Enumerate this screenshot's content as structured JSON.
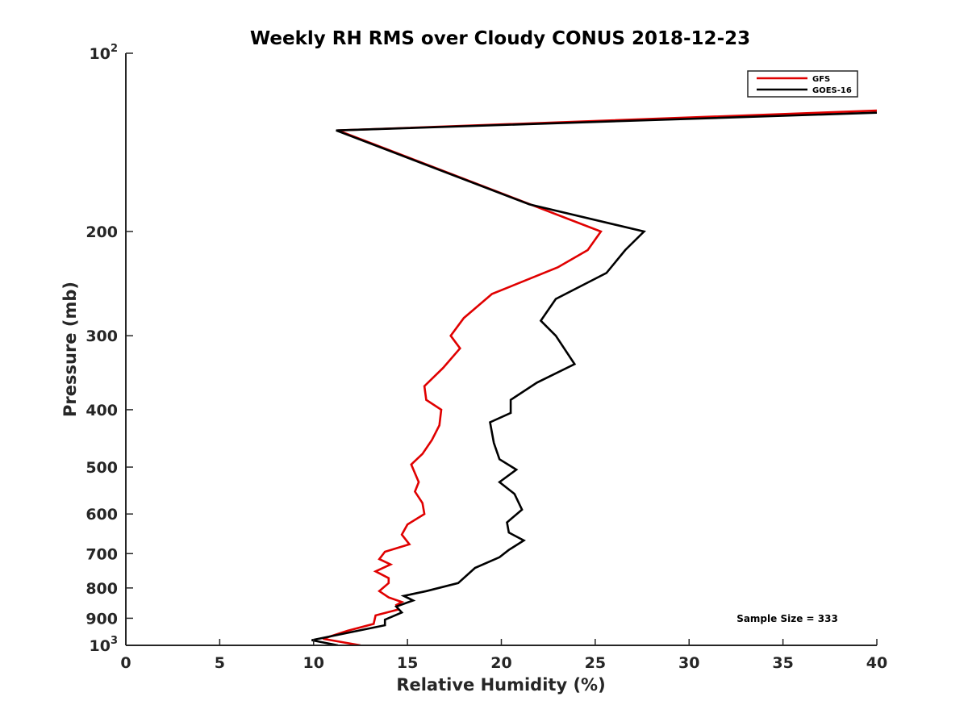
{
  "chart_data": {
    "type": "line",
    "title": "Weekly RH RMS over Cloudy CONUS 2018-12-23",
    "xlabel": "Relative Humidity (%)",
    "ylabel": "Pressure (mb)",
    "xlim": [
      0,
      40
    ],
    "ylim": [
      100,
      1000
    ],
    "y_scale": "log",
    "y_reversed": true,
    "grid": false,
    "legend_position": "top-right",
    "x_ticks": [
      "0",
      "5",
      "10",
      "15",
      "20",
      "25",
      "30",
      "35",
      "40"
    ],
    "y_ticks": [
      {
        "value": 100,
        "base": "10",
        "exp": "2"
      },
      {
        "value": 200,
        "label": "200"
      },
      {
        "value": 300,
        "label": "300"
      },
      {
        "value": 400,
        "label": "400"
      },
      {
        "value": 500,
        "label": "500"
      },
      {
        "value": 600,
        "label": "600"
      },
      {
        "value": 700,
        "label": "700"
      },
      {
        "value": 800,
        "label": "800"
      },
      {
        "value": 900,
        "label": "900"
      },
      {
        "value": 1000,
        "base": "10",
        "exp": "3"
      }
    ],
    "annotation": "Sample Size = 333",
    "series": [
      {
        "name": "GFS",
        "color": "#e00000",
        "points": [
          {
            "x": 40.0,
            "y": 125
          },
          {
            "x": 11.3,
            "y": 135
          },
          {
            "x": 25.3,
            "y": 200
          },
          {
            "x": 24.6,
            "y": 215
          },
          {
            "x": 23.0,
            "y": 230
          },
          {
            "x": 19.5,
            "y": 255
          },
          {
            "x": 18.0,
            "y": 280
          },
          {
            "x": 17.3,
            "y": 300
          },
          {
            "x": 17.8,
            "y": 315
          },
          {
            "x": 16.9,
            "y": 340
          },
          {
            "x": 15.9,
            "y": 365
          },
          {
            "x": 16.0,
            "y": 385
          },
          {
            "x": 16.8,
            "y": 400
          },
          {
            "x": 16.7,
            "y": 425
          },
          {
            "x": 16.3,
            "y": 450
          },
          {
            "x": 15.8,
            "y": 475
          },
          {
            "x": 15.2,
            "y": 495
          },
          {
            "x": 15.6,
            "y": 530
          },
          {
            "x": 15.4,
            "y": 550
          },
          {
            "x": 15.8,
            "y": 575
          },
          {
            "x": 15.9,
            "y": 600
          },
          {
            "x": 15.0,
            "y": 625
          },
          {
            "x": 14.7,
            "y": 650
          },
          {
            "x": 15.1,
            "y": 675
          },
          {
            "x": 13.8,
            "y": 695
          },
          {
            "x": 13.5,
            "y": 715
          },
          {
            "x": 14.1,
            "y": 730
          },
          {
            "x": 13.3,
            "y": 750
          },
          {
            "x": 14.0,
            "y": 770
          },
          {
            "x": 14.0,
            "y": 785
          },
          {
            "x": 13.5,
            "y": 810
          },
          {
            "x": 14.0,
            "y": 830
          },
          {
            "x": 14.7,
            "y": 845
          },
          {
            "x": 14.4,
            "y": 855
          },
          {
            "x": 14.5,
            "y": 870
          },
          {
            "x": 13.3,
            "y": 890
          },
          {
            "x": 13.2,
            "y": 920
          },
          {
            "x": 11.8,
            "y": 945
          },
          {
            "x": 10.5,
            "y": 975
          },
          {
            "x": 12.5,
            "y": 1000
          }
        ]
      },
      {
        "name": "GOES-16",
        "color": "#000000",
        "points": [
          {
            "x": 40.0,
            "y": 126
          },
          {
            "x": 11.2,
            "y": 135
          },
          {
            "x": 21.5,
            "y": 180
          },
          {
            "x": 27.6,
            "y": 200
          },
          {
            "x": 26.6,
            "y": 215
          },
          {
            "x": 25.6,
            "y": 235
          },
          {
            "x": 22.9,
            "y": 260
          },
          {
            "x": 22.1,
            "y": 283
          },
          {
            "x": 22.9,
            "y": 300
          },
          {
            "x": 23.9,
            "y": 335
          },
          {
            "x": 21.9,
            "y": 360
          },
          {
            "x": 20.5,
            "y": 385
          },
          {
            "x": 20.5,
            "y": 405
          },
          {
            "x": 19.4,
            "y": 420
          },
          {
            "x": 19.6,
            "y": 455
          },
          {
            "x": 19.9,
            "y": 485
          },
          {
            "x": 20.8,
            "y": 505
          },
          {
            "x": 19.9,
            "y": 530
          },
          {
            "x": 20.7,
            "y": 555
          },
          {
            "x": 21.1,
            "y": 590
          },
          {
            "x": 20.3,
            "y": 620
          },
          {
            "x": 20.4,
            "y": 645
          },
          {
            "x": 21.2,
            "y": 665
          },
          {
            "x": 20.4,
            "y": 690
          },
          {
            "x": 19.9,
            "y": 710
          },
          {
            "x": 18.6,
            "y": 740
          },
          {
            "x": 17.7,
            "y": 785
          },
          {
            "x": 16.0,
            "y": 810
          },
          {
            "x": 14.8,
            "y": 825
          },
          {
            "x": 15.3,
            "y": 840
          },
          {
            "x": 14.4,
            "y": 860
          },
          {
            "x": 14.7,
            "y": 880
          },
          {
            "x": 13.8,
            "y": 905
          },
          {
            "x": 13.8,
            "y": 925
          },
          {
            "x": 12.0,
            "y": 950
          },
          {
            "x": 9.9,
            "y": 980
          },
          {
            "x": 11.3,
            "y": 1000
          }
        ]
      }
    ]
  }
}
